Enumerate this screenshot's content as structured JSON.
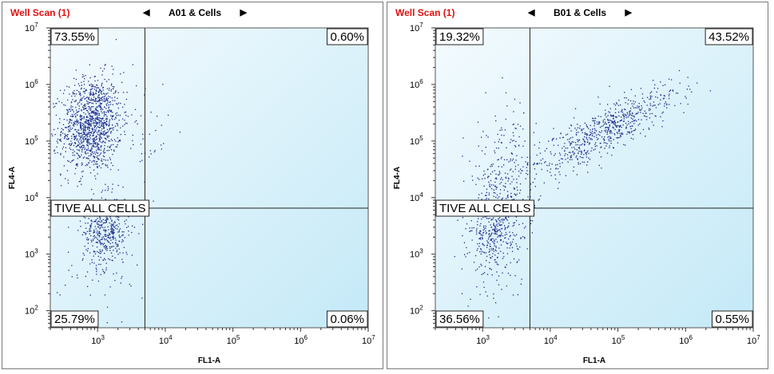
{
  "panels": [
    {
      "well_scan_label": "Well Scan (1)",
      "title": "A01 & Cells",
      "nav": {
        "prev": "◀",
        "next": "▶"
      },
      "quadrants": {
        "upper_left": "73.55%",
        "upper_right": "0.60%",
        "lower_left": "25.79%",
        "lower_right": "0.06%"
      },
      "gate_label": "TIVE ALL CELLS"
    },
    {
      "well_scan_label": "Well Scan (1)",
      "title": "B01 & Cells",
      "nav": {
        "prev": "◀",
        "next": "▶"
      },
      "quadrants": {
        "upper_left": "19.32%",
        "upper_right": "43.52%",
        "lower_left": "36.56%",
        "lower_right": "0.55%"
      },
      "gate_label": "TIVE ALL CELLS"
    }
  ],
  "chart_data": [
    {
      "type": "scatter",
      "title": "A01 & Cells",
      "xlabel": "FL1-A",
      "ylabel": "FL4-A",
      "xscale": "log",
      "yscale": "log",
      "xlim": [
        200,
        10000000
      ],
      "ylim": [
        50,
        10000000
      ],
      "x_ticks": [
        {
          "base": "10",
          "exp": "3"
        },
        {
          "base": "10",
          "exp": "4"
        },
        {
          "base": "10",
          "exp": "5"
        },
        {
          "base": "10",
          "exp": "6"
        },
        {
          "base": "10",
          "exp": "7"
        }
      ],
      "y_ticks": [
        {
          "base": "10",
          "exp": "2"
        },
        {
          "base": "10",
          "exp": "3"
        },
        {
          "base": "10",
          "exp": "4"
        },
        {
          "base": "10",
          "exp": "5"
        },
        {
          "base": "10",
          "exp": "6"
        },
        {
          "base": "10",
          "exp": "7"
        }
      ],
      "quadrant_gate": {
        "x": 5000,
        "y": 6500
      },
      "point_color": "#1a2b8c",
      "background_gradient": [
        "#f4fbfe",
        "#c4e9f7"
      ],
      "populations": [
        {
          "count": 1200,
          "x_center": 800,
          "y_center": 200000,
          "x_spread_decades": 0.22,
          "y_spread_decades": 0.42,
          "correlation": 0.1
        },
        {
          "count": 420,
          "x_center": 1300,
          "y_center": 2500,
          "x_spread_decades": 0.17,
          "y_spread_decades": 0.32,
          "correlation": 0.0
        },
        {
          "count": 40,
          "x_center": 5000,
          "y_center": 150000,
          "x_spread_decades": 0.2,
          "y_spread_decades": 0.5,
          "correlation": 0.0
        },
        {
          "count": 30,
          "x_center": 800,
          "y_center": 300,
          "x_spread_decades": 0.35,
          "y_spread_decades": 0.35,
          "correlation": 0.0
        }
      ]
    },
    {
      "type": "scatter",
      "title": "B01 & Cells",
      "xlabel": "FL1-A",
      "ylabel": "FL4-A",
      "xscale": "log",
      "yscale": "log",
      "xlim": [
        200,
        10000000
      ],
      "ylim": [
        50,
        10000000
      ],
      "x_ticks": [
        {
          "base": "10",
          "exp": "3"
        },
        {
          "base": "10",
          "exp": "4"
        },
        {
          "base": "10",
          "exp": "5"
        },
        {
          "base": "10",
          "exp": "6"
        },
        {
          "base": "10",
          "exp": "7"
        }
      ],
      "y_ticks": [
        {
          "base": "10",
          "exp": "2"
        },
        {
          "base": "10",
          "exp": "3"
        },
        {
          "base": "10",
          "exp": "4"
        },
        {
          "base": "10",
          "exp": "5"
        },
        {
          "base": "10",
          "exp": "6"
        },
        {
          "base": "10",
          "exp": "7"
        }
      ],
      "quadrant_gate": {
        "x": 5000,
        "y": 6500
      },
      "point_color": "#1a2b8c",
      "background_gradient": [
        "#f4fbfe",
        "#c4e9f7"
      ],
      "populations": [
        {
          "count": 650,
          "x_center": 60000,
          "y_center": 150000,
          "x_spread_decades": 0.55,
          "y_spread_decades": 0.4,
          "correlation": 0.85
        },
        {
          "count": 400,
          "x_center": 1500,
          "y_center": 2500,
          "x_spread_decades": 0.2,
          "y_spread_decades": 0.38,
          "correlation": 0.1
        },
        {
          "count": 260,
          "x_center": 2200,
          "y_center": 30000,
          "x_spread_decades": 0.25,
          "y_spread_decades": 0.5,
          "correlation": 0.0
        },
        {
          "count": 25,
          "x_center": 1200,
          "y_center": 200,
          "x_spread_decades": 0.3,
          "y_spread_decades": 0.25,
          "correlation": 0.0
        }
      ]
    }
  ]
}
